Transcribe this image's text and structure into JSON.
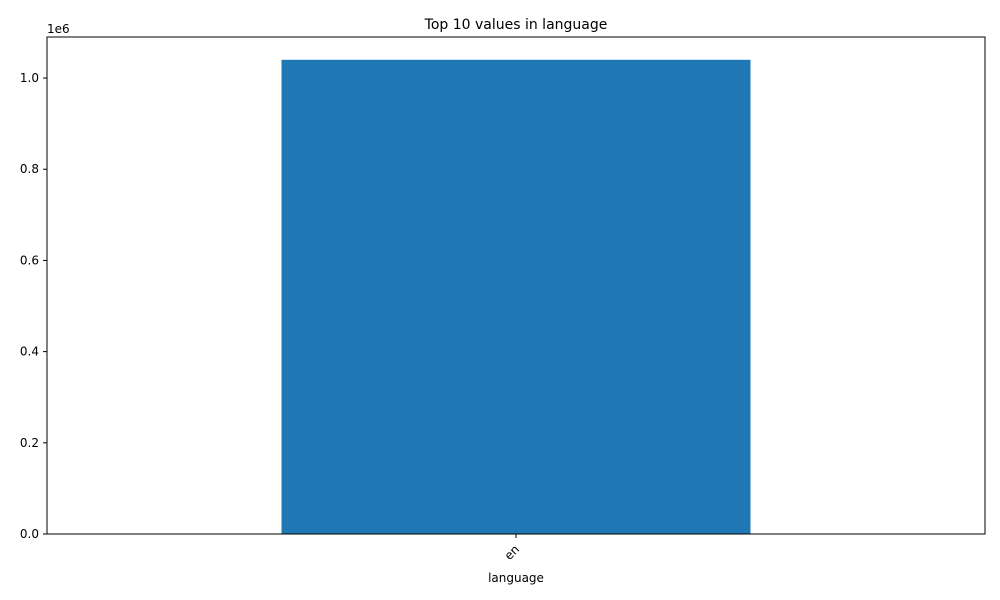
{
  "chart_data": {
    "type": "bar",
    "title": "Top 10 values in language",
    "xlabel": "language",
    "ylabel": "",
    "categories": [
      "en"
    ],
    "values": [
      1040000
    ],
    "ylim": [
      0,
      1090000
    ],
    "y_ticks": [
      0,
      200000,
      400000,
      600000,
      800000,
      1000000
    ],
    "y_tick_labels": [
      "0.0",
      "0.2",
      "0.4",
      "0.6",
      "0.8",
      "1.0"
    ],
    "y_offset_text": "1e6",
    "x_tick_rotation": "45 degrees",
    "bar_color": "#1f77b4",
    "grid": false,
    "legend": "none"
  }
}
